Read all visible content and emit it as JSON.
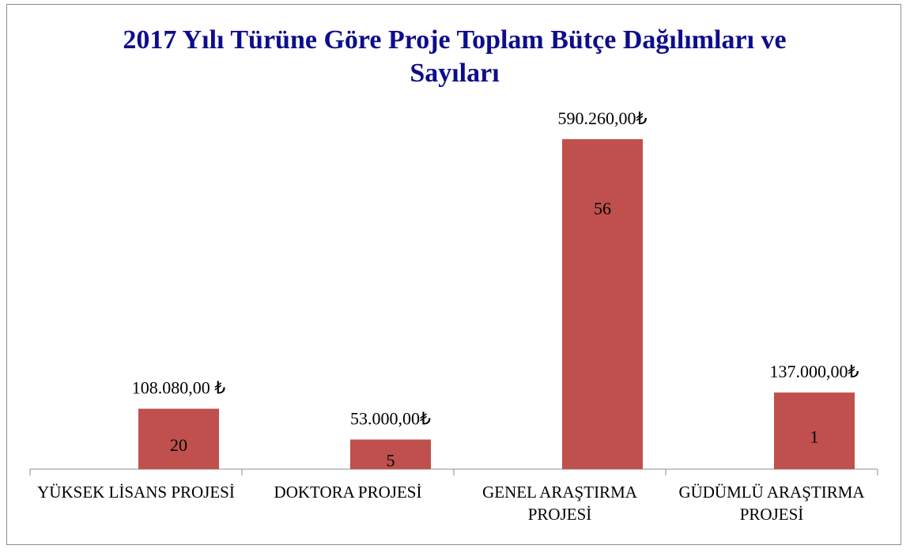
{
  "chart_data": {
    "type": "bar",
    "title": "2017 Yılı Türüne Göre Proje Toplam Bütçe Dağılımları ve Sayıları",
    "categories": [
      "YÜKSEK LİSANS PROJESİ",
      "DOKTORA PROJESİ",
      "GENEL ARAŞTIRMA PROJESİ",
      "GÜDÜMLÜ ARAŞTIRMA PROJESİ"
    ],
    "values": [
      108080,
      53000,
      590260,
      137000
    ],
    "value_labels": [
      "108.080,00 ₺",
      "53.000,00₺",
      "590.260,00₺",
      "137.000,00₺"
    ],
    "counts": [
      20,
      5,
      56,
      1
    ],
    "color": "#c0504d",
    "ylim": [
      0,
      600000
    ]
  }
}
